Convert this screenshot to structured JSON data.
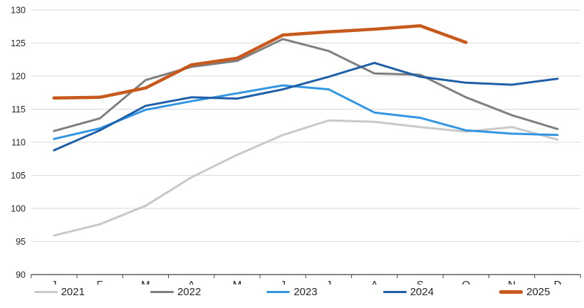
{
  "chart_data": {
    "type": "line",
    "title": "",
    "xlabel": "",
    "ylabel": "",
    "x_labels": [
      "J",
      "F",
      "M",
      "A",
      "M",
      "J",
      "J",
      "A",
      "S",
      "O",
      "N",
      "D"
    ],
    "y_ticks": [
      90,
      95,
      100,
      105,
      110,
      115,
      120,
      125,
      130
    ],
    "ylim": [
      90,
      130
    ],
    "grid": "horizontal-only",
    "legend_position": "bottom",
    "background_color": "#ffffff",
    "gridline_color": "#d9d9d9",
    "axis_color": "#404040",
    "series": [
      {
        "name": "2021",
        "color": "#c9c9c9",
        "stroke_width": 3,
        "values": [
          95.9,
          97.6,
          100.4,
          104.7,
          108.1,
          111.1,
          113.3,
          113.1,
          112.3,
          111.6,
          112.3,
          110.4
        ]
      },
      {
        "name": "2022",
        "color": "#7f7f7f",
        "stroke_width": 3,
        "values": [
          111.7,
          113.6,
          119.4,
          121.4,
          122.3,
          125.6,
          123.8,
          120.4,
          120.2,
          116.8,
          114.1,
          112.0
        ]
      },
      {
        "name": "2023",
        "color": "#3396e2",
        "stroke_width": 3,
        "values": [
          110.5,
          112.1,
          114.9,
          116.2,
          117.4,
          118.6,
          118.0,
          114.5,
          113.7,
          111.8,
          111.3,
          111.1
        ]
      },
      {
        "name": "2024",
        "color": "#1f5fa8",
        "stroke_width": 3,
        "values": [
          108.8,
          111.8,
          115.5,
          116.8,
          116.6,
          118.0,
          119.9,
          122.0,
          119.9,
          119.0,
          118.7,
          119.6
        ]
      },
      {
        "name": "2025",
        "color": "#c6591b",
        "stroke_width": 4.5,
        "values": [
          116.7,
          116.8,
          118.2,
          121.7,
          122.7,
          126.2,
          126.7,
          127.1,
          127.6,
          125.1
        ]
      }
    ]
  }
}
